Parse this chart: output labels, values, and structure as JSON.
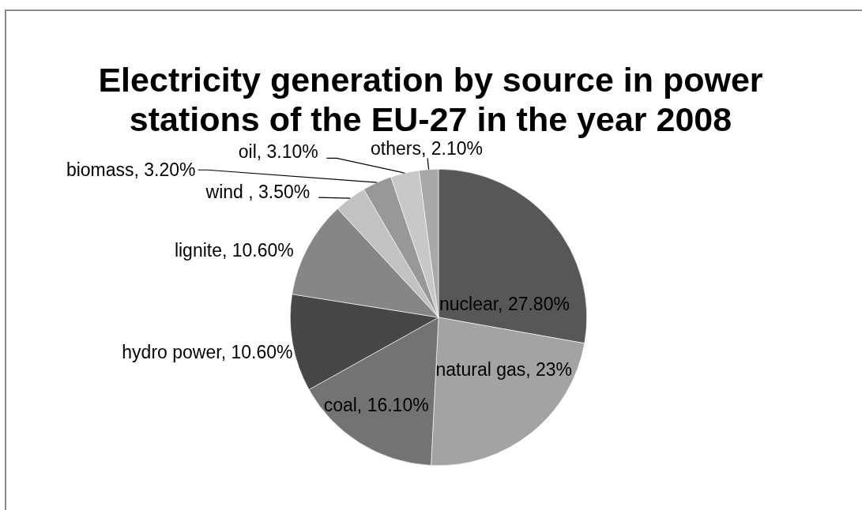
{
  "chart_data": {
    "type": "pie",
    "title": "Electricity generation by source in power stations of the EU-27 in the year 2008",
    "categories": [
      "nuclear",
      "natural gas",
      "coal",
      "hydro power",
      "lignite",
      "wind ",
      "biomass",
      "oil",
      "others"
    ],
    "values": [
      27.8,
      23,
      16.1,
      10.6,
      10.6,
      3.5,
      3.2,
      3.1,
      2.1
    ],
    "colors": [
      "#575757",
      "#a3a3a3",
      "#737373",
      "#474747",
      "#868686",
      "#c2c2c2",
      "#989898",
      "#c8c8c8",
      "#a9a9a9"
    ],
    "value_labels": [
      "27.80%",
      "23%",
      "16.10%",
      "10.60%",
      "10.60%",
      "3.50%",
      "3.20%",
      "3.10%",
      "2.10%"
    ],
    "legend": false
  }
}
